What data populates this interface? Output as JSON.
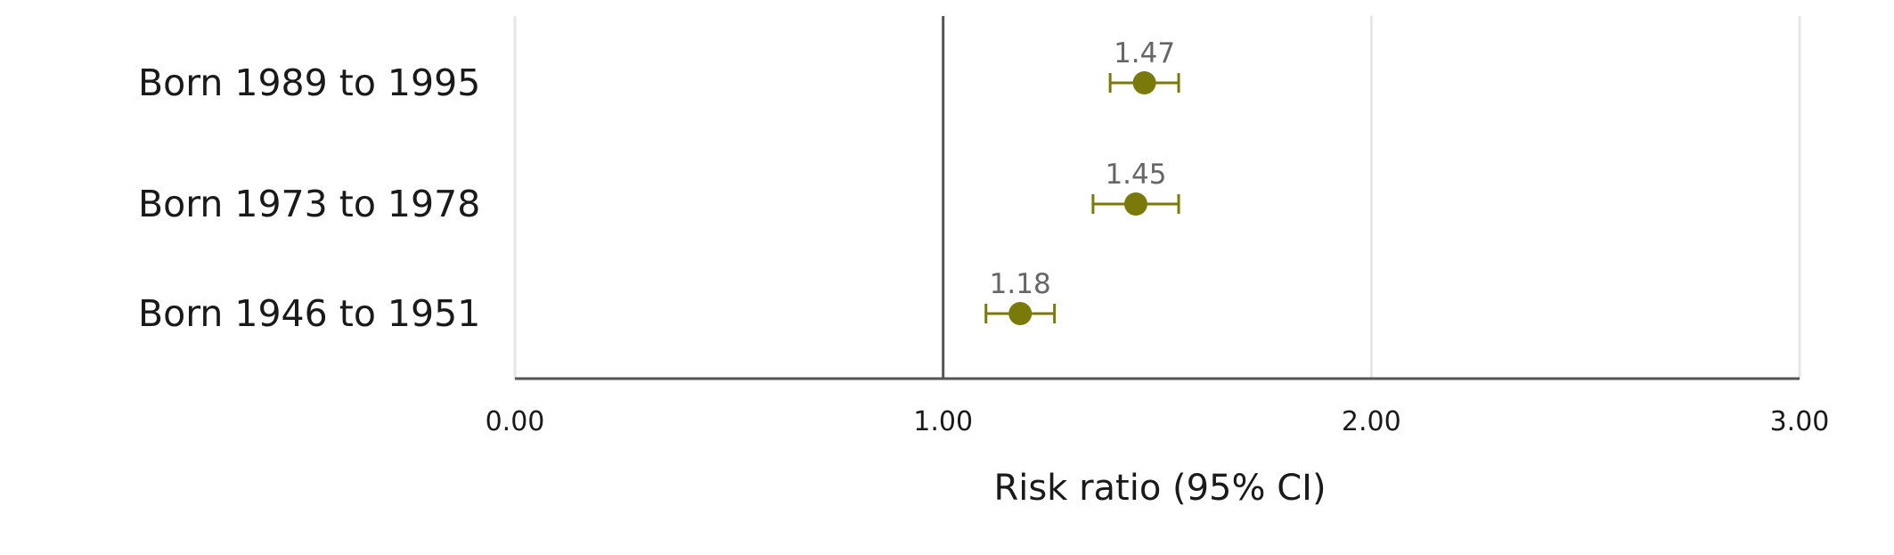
{
  "chart_data": {
    "type": "scatter",
    "title": "",
    "xlabel": "Risk ratio (95% CI)",
    "ylabel": "",
    "xlim": [
      0,
      3
    ],
    "x_ticks": [
      0,
      1,
      2,
      3
    ],
    "x_tick_labels": [
      "0.00",
      "1.00",
      "2.00",
      "3.00"
    ],
    "reference_line": 1,
    "grid": "vertical",
    "legend": "none",
    "color": "#7a7a0a",
    "series": [
      {
        "points": [
          {
            "category": "Born 1989 to 1995",
            "value": 1.47,
            "label": "1.47",
            "ci_low": 1.39,
            "ci_high": 1.55
          },
          {
            "category": "Born 1973 to 1978",
            "value": 1.45,
            "label": "1.45",
            "ci_low": 1.35,
            "ci_high": 1.55
          },
          {
            "category": "Born 1946 to 1951",
            "value": 1.18,
            "label": "1.18",
            "ci_low": 1.1,
            "ci_high": 1.26
          }
        ]
      }
    ]
  }
}
